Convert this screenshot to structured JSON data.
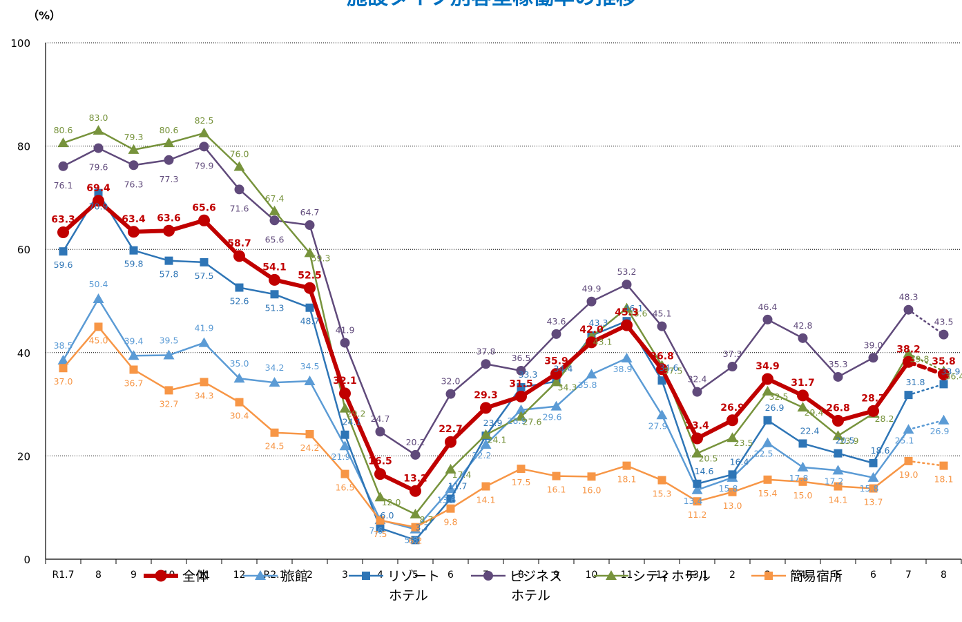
{
  "chart_data": {
    "type": "line",
    "title": "施設タイプ別客室稼働率の推移",
    "ylabel": "（%）",
    "ylim": [
      0,
      100
    ],
    "yticks": [
      0,
      20,
      40,
      60,
      80,
      100
    ],
    "grid": true,
    "legend_position": "bottom",
    "categories": [
      "R1.7",
      "8",
      "9",
      "10",
      "11",
      "12",
      "R2.1",
      "2",
      "3",
      "4",
      "5",
      "6",
      "7",
      "8",
      "9",
      "10",
      "11",
      "12",
      "R3.1",
      "2",
      "3",
      "4",
      "5",
      "6",
      "7",
      "8"
    ],
    "last_point_style": "dotted",
    "series": [
      {
        "name": "全体",
        "key": "all",
        "color": "#c00000",
        "marker": "circle",
        "line_width": 6,
        "bold_labels": true,
        "values": [
          63.3,
          69.4,
          63.4,
          63.6,
          65.6,
          58.7,
          54.1,
          52.5,
          32.1,
          16.5,
          13.2,
          22.7,
          29.3,
          31.5,
          35.9,
          42.0,
          45.3,
          36.8,
          23.4,
          26.9,
          34.9,
          31.7,
          26.8,
          28.7,
          38.2,
          35.8
        ]
      },
      {
        "name": "旅館",
        "key": "ryokan",
        "color": "#5b9bd5",
        "marker": "triangle",
        "line_width": 2.5,
        "values": [
          38.5,
          50.4,
          39.4,
          39.5,
          41.9,
          35.0,
          34.2,
          34.5,
          21.9,
          7.6,
          5.8,
          13.6,
          22.2,
          28.9,
          29.6,
          35.8,
          38.9,
          27.9,
          13.4,
          15.8,
          22.5,
          17.8,
          17.2,
          15.8,
          25.1,
          26.9
        ]
      },
      {
        "name": "リゾートホテル",
        "name_lines": [
          "リゾート",
          "ホテル"
        ],
        "key": "resort",
        "color": "#2e75b6",
        "marker": "square",
        "line_width": 2.5,
        "values": [
          59.6,
          70.9,
          59.8,
          57.8,
          57.5,
          52.6,
          51.3,
          48.7,
          24.1,
          6.0,
          3.7,
          11.7,
          23.9,
          33.3,
          34.4,
          43.3,
          46.1,
          34.6,
          14.6,
          16.4,
          26.9,
          22.4,
          20.5,
          18.6,
          31.8,
          33.9
        ]
      },
      {
        "name": "ビジネスホテル",
        "name_lines": [
          "ビジネス",
          "ホテル"
        ],
        "key": "business",
        "color": "#604a7b",
        "marker": "circle",
        "line_width": 2.5,
        "values": [
          76.1,
          79.6,
          76.3,
          77.3,
          79.9,
          71.6,
          65.6,
          64.7,
          41.9,
          24.7,
          20.2,
          32.0,
          37.8,
          36.5,
          43.6,
          49.9,
          53.2,
          45.1,
          32.4,
          37.3,
          46.4,
          42.8,
          35.3,
          39.0,
          48.3,
          43.5
        ]
      },
      {
        "name": "シティホテル",
        "key": "city",
        "color": "#77933c",
        "marker": "triangle",
        "line_width": 2.5,
        "values": [
          80.6,
          83.0,
          79.3,
          80.6,
          82.5,
          76.0,
          67.4,
          59.3,
          29.2,
          12.0,
          8.7,
          17.4,
          24.1,
          27.6,
          34.3,
          43.1,
          48.6,
          37.5,
          20.5,
          23.5,
          32.5,
          29.4,
          23.9,
          28.2,
          39.8,
          36.4
        ]
      },
      {
        "name": "簡易宿所",
        "key": "simple",
        "color": "#f79646",
        "marker": "square",
        "line_width": 2.5,
        "values": [
          37.0,
          45.0,
          36.7,
          32.7,
          34.3,
          30.4,
          24.5,
          24.2,
          16.5,
          7.5,
          6.2,
          9.8,
          14.1,
          17.5,
          16.1,
          16.0,
          18.1,
          15.3,
          11.2,
          13.0,
          15.4,
          15.0,
          14.1,
          13.7,
          19.0,
          18.1
        ]
      }
    ]
  }
}
